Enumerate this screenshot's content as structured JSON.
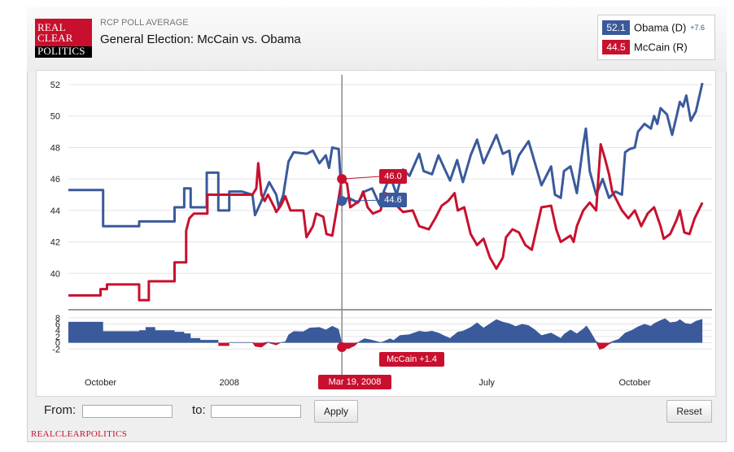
{
  "header": {
    "logo_lines": [
      "REAL",
      "CLEAR",
      "POLITICS"
    ],
    "kicker": "RCP POLL AVERAGE",
    "title": "General Election: McCain vs. Obama"
  },
  "legend": {
    "obama": {
      "value": "52.1",
      "name": "Obama (D)",
      "change": "+7.6",
      "color": "#3a5a9b"
    },
    "mccain": {
      "value": "44.5",
      "name": "McCain (R)",
      "color": "#c8102e"
    }
  },
  "tooltip": {
    "mccain_value": "46.0",
    "obama_value": "44.6",
    "spread_label": "McCain +1.4",
    "date_label": "Mar 19, 2008"
  },
  "controls": {
    "from_label": "From:",
    "to_label": "to:",
    "from_value": "",
    "to_value": "",
    "apply_label": "Apply",
    "reset_label": "Reset"
  },
  "footer": {
    "text": "REALCLEARPOLITICS"
  },
  "chart_data": {
    "type": "line",
    "title": "General Election: McCain vs. Obama",
    "ylim": [
      38,
      52
    ],
    "yticks": [
      40,
      42,
      44,
      46,
      48,
      50,
      52
    ],
    "xlim": [
      0,
      100
    ],
    "xticks": [
      {
        "x": 5,
        "label": "October"
      },
      {
        "x": 25,
        "label": "2008"
      },
      {
        "x": 65,
        "label": "July"
      },
      {
        "x": 88,
        "label": "October"
      }
    ],
    "crosshair_x": 42.5,
    "series": [
      {
        "name": "Obama (D)",
        "color": "#3a5a9b",
        "points": [
          [
            0,
            45.3
          ],
          [
            5.4,
            45.3
          ],
          [
            5.4,
            43.0
          ],
          [
            11,
            43.0
          ],
          [
            11,
            43.3
          ],
          [
            16.5,
            43.3
          ],
          [
            16.5,
            44.2
          ],
          [
            18,
            44.2
          ],
          [
            18,
            45.4
          ],
          [
            19,
            45.4
          ],
          [
            19,
            44.2
          ],
          [
            21.5,
            44.2
          ],
          [
            21.5,
            46.4
          ],
          [
            23.3,
            46.4
          ],
          [
            23.3,
            44.0
          ],
          [
            25,
            44.0
          ],
          [
            25,
            45.2
          ],
          [
            27,
            45.2
          ],
          [
            28.6,
            45.0
          ],
          [
            29,
            43.7
          ],
          [
            30,
            44.6
          ],
          [
            31.2,
            45.8
          ],
          [
            32.3,
            45.0
          ],
          [
            32.7,
            44.2
          ],
          [
            33.4,
            45.0
          ],
          [
            34.2,
            47.1
          ],
          [
            35,
            47.7
          ],
          [
            37,
            47.6
          ],
          [
            38,
            47.8
          ],
          [
            39,
            47.0
          ],
          [
            40,
            47.5
          ],
          [
            40.5,
            46.7
          ],
          [
            41,
            48.0
          ],
          [
            42,
            47.9
          ],
          [
            42.5,
            44.6
          ],
          [
            43.5,
            44.8
          ],
          [
            45,
            44.5
          ],
          [
            46,
            45.2
          ],
          [
            47.2,
            45.4
          ],
          [
            48.3,
            44.4
          ],
          [
            49,
            45.2
          ],
          [
            50,
            46.2
          ],
          [
            51,
            45.0
          ],
          [
            52,
            46.6
          ],
          [
            53,
            46.2
          ],
          [
            54.5,
            47.6
          ],
          [
            55.2,
            46.5
          ],
          [
            56.5,
            46.3
          ],
          [
            57.5,
            47.5
          ],
          [
            58.5,
            46.6
          ],
          [
            59.3,
            45.9
          ],
          [
            60.4,
            47.2
          ],
          [
            61.3,
            45.8
          ],
          [
            62.5,
            47.5
          ],
          [
            63.5,
            48.5
          ],
          [
            64.5,
            47.0
          ],
          [
            66.5,
            48.8
          ],
          [
            67.5,
            47.6
          ],
          [
            68.5,
            47.8
          ],
          [
            69,
            46.3
          ],
          [
            70,
            47.5
          ],
          [
            71.5,
            48.4
          ],
          [
            72.5,
            47.0
          ],
          [
            73.5,
            45.6
          ],
          [
            75,
            46.8
          ],
          [
            75.6,
            45.0
          ],
          [
            76.5,
            44.8
          ],
          [
            77,
            46.5
          ],
          [
            78,
            46.8
          ],
          [
            79,
            45.1
          ],
          [
            80,
            48.2
          ],
          [
            80.4,
            49.2
          ],
          [
            81,
            46.5
          ],
          [
            82,
            45.0
          ],
          [
            83,
            46.0
          ],
          [
            84,
            44.8
          ],
          [
            85,
            45.2
          ],
          [
            86,
            45.0
          ],
          [
            86.5,
            47.7
          ],
          [
            87.2,
            47.9
          ],
          [
            88,
            48.0
          ],
          [
            88.5,
            49.0
          ],
          [
            89.5,
            49.5
          ],
          [
            90.5,
            49.2
          ],
          [
            91,
            50.0
          ],
          [
            91.5,
            49.5
          ],
          [
            92,
            50.5
          ],
          [
            93,
            50.1
          ],
          [
            93.8,
            48.8
          ],
          [
            94.5,
            50.0
          ],
          [
            95,
            50.9
          ],
          [
            95.5,
            50.6
          ],
          [
            96,
            51.3
          ],
          [
            96.7,
            49.7
          ],
          [
            97.5,
            50.3
          ],
          [
            98.5,
            52.1
          ]
        ]
      },
      {
        "name": "McCain (R)",
        "color": "#c8102e",
        "points": [
          [
            0,
            38.6
          ],
          [
            5,
            38.6
          ],
          [
            5,
            39.0
          ],
          [
            6,
            39.0
          ],
          [
            6,
            39.3
          ],
          [
            11,
            39.3
          ],
          [
            11,
            38.3
          ],
          [
            12.5,
            38.3
          ],
          [
            12.5,
            39.5
          ],
          [
            16.5,
            39.5
          ],
          [
            16.5,
            40.7
          ],
          [
            18.3,
            40.7
          ],
          [
            18.3,
            42.7
          ],
          [
            18.8,
            43.5
          ],
          [
            19.5,
            43.8
          ],
          [
            21.6,
            43.8
          ],
          [
            21.6,
            45.0
          ],
          [
            28.6,
            45.0
          ],
          [
            29.2,
            45.4
          ],
          [
            29.5,
            47.0
          ],
          [
            30,
            45.0
          ],
          [
            30.5,
            44.6
          ],
          [
            31,
            45.0
          ],
          [
            32,
            44.2
          ],
          [
            32.3,
            43.9
          ],
          [
            33,
            44.3
          ],
          [
            33.7,
            44.9
          ],
          [
            34.5,
            44.0
          ],
          [
            36.5,
            44.0
          ],
          [
            37,
            42.3
          ],
          [
            38,
            43.0
          ],
          [
            38.5,
            43.8
          ],
          [
            39.6,
            43.6
          ],
          [
            40.1,
            42.5
          ],
          [
            41,
            42.4
          ],
          [
            42.5,
            46.0
          ],
          [
            43.3,
            45.7
          ],
          [
            43.8,
            44.2
          ],
          [
            45.2,
            44.6
          ],
          [
            45.8,
            45.2
          ],
          [
            46.5,
            44.2
          ],
          [
            47.3,
            43.8
          ],
          [
            48.5,
            44.0
          ],
          [
            49.2,
            45.1
          ],
          [
            50,
            45.0
          ],
          [
            51,
            44.3
          ],
          [
            52,
            43.9
          ],
          [
            53.5,
            44.0
          ],
          [
            54.5,
            43.0
          ],
          [
            56,
            42.8
          ],
          [
            57,
            43.5
          ],
          [
            58,
            44.3
          ],
          [
            59,
            44.6
          ],
          [
            60,
            45.1
          ],
          [
            60.5,
            44.0
          ],
          [
            61.5,
            44.2
          ],
          [
            62.5,
            42.5
          ],
          [
            63.5,
            41.8
          ],
          [
            64.5,
            42.2
          ],
          [
            65.5,
            41.0
          ],
          [
            66.5,
            40.3
          ],
          [
            67.5,
            41.0
          ],
          [
            68,
            42.3
          ],
          [
            69,
            42.8
          ],
          [
            70,
            42.6
          ],
          [
            71,
            41.8
          ],
          [
            72,
            41.5
          ],
          [
            73.5,
            44.2
          ],
          [
            75,
            44.3
          ],
          [
            75.8,
            42.8
          ],
          [
            76.5,
            42.0
          ],
          [
            78,
            42.4
          ],
          [
            78.5,
            42.0
          ],
          [
            79,
            43.0
          ],
          [
            80,
            44.0
          ],
          [
            81,
            44.5
          ],
          [
            82,
            44.0
          ],
          [
            82.7,
            48.2
          ],
          [
            83.3,
            47.4
          ],
          [
            84,
            46.3
          ],
          [
            84.5,
            45.2
          ],
          [
            86,
            44.0
          ],
          [
            87,
            43.5
          ],
          [
            88,
            44.0
          ],
          [
            89,
            43.0
          ],
          [
            90,
            43.8
          ],
          [
            91,
            44.2
          ],
          [
            92,
            43.0
          ],
          [
            92.5,
            42.2
          ],
          [
            93.5,
            42.5
          ],
          [
            94.5,
            43.4
          ],
          [
            95,
            44.0
          ],
          [
            95.7,
            42.6
          ],
          [
            96.5,
            42.5
          ],
          [
            97.3,
            43.5
          ],
          [
            98.5,
            44.5
          ]
        ]
      }
    ],
    "spread": {
      "ylim": [
        -4,
        9
      ],
      "yticks": [
        -2,
        0,
        2,
        4,
        6,
        8
      ],
      "points": [
        [
          0,
          6.7
        ],
        [
          5.4,
          6.7
        ],
        [
          5.4,
          3.7
        ],
        [
          11,
          3.7
        ],
        [
          11,
          4.0
        ],
        [
          12,
          4.0
        ],
        [
          12,
          5.0
        ],
        [
          13.5,
          5.0
        ],
        [
          13.5,
          4.0
        ],
        [
          16.5,
          4.0
        ],
        [
          16.5,
          3.5
        ],
        [
          18,
          3.5
        ],
        [
          18,
          3.0
        ],
        [
          19,
          3.0
        ],
        [
          19,
          1.5
        ],
        [
          20.5,
          1.5
        ],
        [
          20.5,
          0.9
        ],
        [
          23.3,
          0.9
        ],
        [
          23.3,
          -1.0
        ],
        [
          25,
          -1.0
        ],
        [
          25,
          0.2
        ],
        [
          28.6,
          0.2
        ],
        [
          29,
          -1.2
        ],
        [
          30,
          -1.5
        ],
        [
          31,
          0.3
        ],
        [
          32.3,
          -0.8
        ],
        [
          33,
          0.2
        ],
        [
          33.7,
          0.4
        ],
        [
          34.2,
          2.6
        ],
        [
          35,
          3.7
        ],
        [
          36.5,
          3.6
        ],
        [
          37.5,
          4.8
        ],
        [
          39,
          5.0
        ],
        [
          40,
          4.2
        ],
        [
          41,
          5.4
        ],
        [
          42,
          4.4
        ],
        [
          42.5,
          -1.4
        ],
        [
          43.5,
          -2.0
        ],
        [
          44.5,
          -1.0
        ],
        [
          45,
          0.2
        ],
        [
          46,
          1.4
        ],
        [
          47,
          1.0
        ],
        [
          48.5,
          0.2
        ],
        [
          49,
          0.5
        ],
        [
          50,
          1.4
        ],
        [
          50.5,
          0.8
        ],
        [
          51.5,
          2.4
        ],
        [
          53,
          2.7
        ],
        [
          54.5,
          3.8
        ],
        [
          55.5,
          3.5
        ],
        [
          56.5,
          3.8
        ],
        [
          57.5,
          3.2
        ],
        [
          58.5,
          2.2
        ],
        [
          59.3,
          1.5
        ],
        [
          60.5,
          3.5
        ],
        [
          61.3,
          3.8
        ],
        [
          62.5,
          5.0
        ],
        [
          63.5,
          6.5
        ],
        [
          64.5,
          4.8
        ],
        [
          66.5,
          7.5
        ],
        [
          67.5,
          6.7
        ],
        [
          68.5,
          6.2
        ],
        [
          69.5,
          5.3
        ],
        [
          70.5,
          6.0
        ],
        [
          71.5,
          5.6
        ],
        [
          72.5,
          4.2
        ],
        [
          73.5,
          2.4
        ],
        [
          75,
          3.2
        ],
        [
          76.5,
          1.5
        ],
        [
          77,
          2.8
        ],
        [
          78,
          4.2
        ],
        [
          79,
          3.0
        ],
        [
          80,
          4.5
        ],
        [
          80.5,
          5.5
        ],
        [
          81,
          4.0
        ],
        [
          82,
          0.5
        ],
        [
          82.5,
          -2.2
        ],
        [
          83.2,
          -1.8
        ],
        [
          84,
          -0.5
        ],
        [
          84.5,
          0.5
        ],
        [
          85.5,
          1.2
        ],
        [
          86.5,
          3.2
        ],
        [
          87.5,
          4.0
        ],
        [
          88.5,
          5.2
        ],
        [
          89.5,
          6.0
        ],
        [
          90.5,
          5.4
        ],
        [
          91,
          6.2
        ],
        [
          92,
          7.2
        ],
        [
          92.7,
          7.8
        ],
        [
          93.5,
          6.5
        ],
        [
          94.5,
          6.8
        ],
        [
          95,
          7.5
        ],
        [
          95.8,
          6.3
        ],
        [
          96.7,
          6.0
        ],
        [
          97.5,
          7.0
        ],
        [
          98.5,
          7.6
        ]
      ]
    }
  }
}
